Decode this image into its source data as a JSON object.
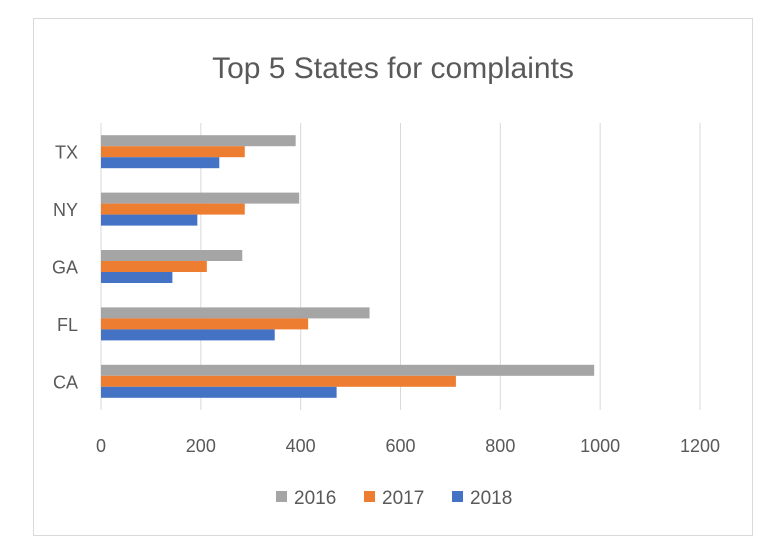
{
  "chart_data": {
    "type": "bar",
    "orientation": "horizontal",
    "title": "Top 5 States for complaints",
    "categories": [
      "CA",
      "FL",
      "GA",
      "NY",
      "TX"
    ],
    "series": [
      {
        "name": "2016",
        "color": "#a5a5a5",
        "values": [
          988,
          538,
          283,
          397,
          390
        ]
      },
      {
        "name": "2017",
        "color": "#ed7d31",
        "values": [
          711,
          415,
          212,
          288,
          288
        ]
      },
      {
        "name": "2018",
        "color": "#4472c4",
        "values": [
          472,
          348,
          143,
          193,
          237
        ]
      }
    ],
    "xlim": [
      0,
      1200
    ],
    "xticks": [
      "0",
      "200",
      "400",
      "600",
      "800",
      "1000",
      "1200"
    ],
    "grid": true,
    "legend": "bottom"
  }
}
